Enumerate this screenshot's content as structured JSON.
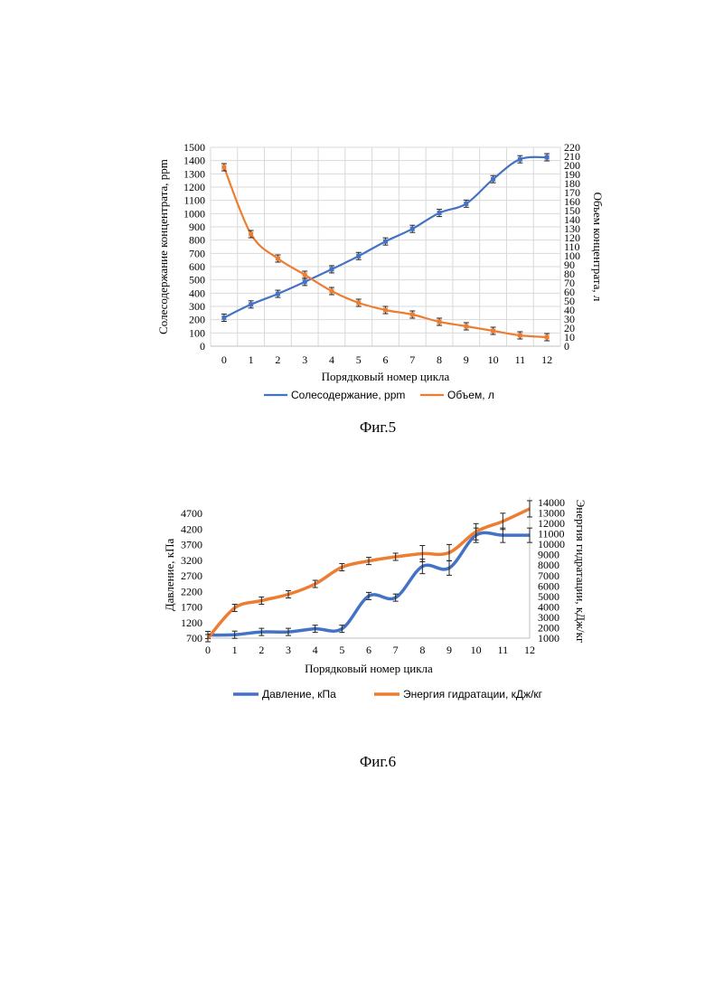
{
  "chart_data": [
    {
      "type": "line",
      "caption": "Фиг.5",
      "xlabel": "Порядковый номер цикла",
      "ylabel_left": "Солесодержание концентрата, ppm",
      "ylabel_right": "Объем концентрата, л",
      "categories": [
        0,
        1,
        2,
        3,
        4,
        5,
        6,
        7,
        8,
        9,
        10,
        11,
        12
      ],
      "ylim_left": [
        0,
        1500
      ],
      "ylim_right": [
        0,
        220
      ],
      "left_ticks": [
        0,
        100,
        200,
        300,
        400,
        500,
        600,
        700,
        800,
        900,
        1000,
        1100,
        1200,
        1300,
        1400,
        1500
      ],
      "right_ticks": [
        0,
        10,
        20,
        30,
        40,
        50,
        60,
        70,
        80,
        90,
        100,
        110,
        120,
        130,
        140,
        150,
        160,
        170,
        180,
        190,
        200,
        210,
        220
      ],
      "grid": true,
      "legend_position": "bottom",
      "series": [
        {
          "name": "Солесодержание, ppm",
          "axis": "left",
          "color": "#4472c4",
          "values": [
            215,
            315,
            395,
            485,
            580,
            680,
            790,
            885,
            1005,
            1075,
            1260,
            1410,
            1425
          ]
        },
        {
          "name": "Объем, л",
          "axis": "right",
          "color": "#ed7d31",
          "values": [
            198,
            124,
            97,
            79,
            61,
            48,
            40,
            35,
            27,
            22,
            17,
            12,
            10
          ]
        }
      ]
    },
    {
      "type": "line",
      "caption": "Фиг.6",
      "xlabel": "Порядковый номер цикла",
      "ylabel_left": "Давление, кПа",
      "ylabel_right": "Энергия гидратации, кДж/кг",
      "categories": [
        0,
        1,
        2,
        3,
        4,
        5,
        6,
        7,
        8,
        9,
        10,
        11,
        12
      ],
      "ylim_left": [
        700,
        5200
      ],
      "ylim_right": [
        1000,
        14000
      ],
      "left_ticks": [
        700,
        1200,
        1700,
        2200,
        2700,
        3200,
        3700,
        4200,
        4700
      ],
      "right_ticks": [
        1000,
        2000,
        3000,
        4000,
        5000,
        6000,
        7000,
        8000,
        9000,
        10000,
        11000,
        12000,
        13000,
        14000
      ],
      "grid": false,
      "legend_position": "bottom",
      "series": [
        {
          "name": "Давление, кПа",
          "axis": "left",
          "color": "#4472c4",
          "values": [
            800,
            810,
            900,
            900,
            1000,
            1000,
            2050,
            2000,
            3000,
            2950,
            4000,
            4000,
            4000
          ]
        },
        {
          "name": "Энергия гидратации, кДж/кг",
          "axis": "right",
          "color": "#ed7d31",
          "values": [
            1000,
            3900,
            4600,
            5200,
            6200,
            7800,
            8400,
            8800,
            9100,
            9200,
            11200,
            12200,
            13400
          ]
        }
      ]
    }
  ]
}
